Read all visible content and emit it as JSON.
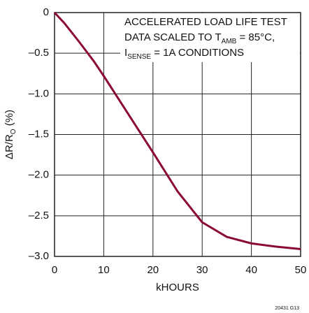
{
  "chart_data": {
    "type": "line",
    "ylabel": [
      {
        "text": "ΔR/R"
      },
      {
        "text": "O",
        "sub": true
      },
      {
        "text": " (%)"
      }
    ],
    "xlabel": "kHOURS",
    "footnote": "20431 G13",
    "annotation": [
      [
        {
          "text": "ACCELERATED LOAD LIFE TEST"
        }
      ],
      [
        {
          "text": "DATA SCALED TO T"
        },
        {
          "text": "AMB",
          "sub": true
        },
        {
          "text": " = 85°C,"
        }
      ],
      [
        {
          "text": "I"
        },
        {
          "text": "SENSE",
          "sub": true
        },
        {
          "text": " = 1A CONDITIONS"
        }
      ]
    ],
    "x": [
      0,
      2,
      5,
      8,
      10,
      15,
      20,
      25,
      30,
      35,
      40,
      45,
      50
    ],
    "series": [
      {
        "color": "#8b0a35",
        "values": [
          0,
          -0.13,
          -0.36,
          -0.6,
          -0.78,
          -1.25,
          -1.72,
          -2.2,
          -2.58,
          -2.76,
          -2.84,
          -2.88,
          -2.91
        ]
      }
    ],
    "xlim": [
      0,
      50
    ],
    "xticks": [
      0,
      10,
      20,
      30,
      40,
      50
    ],
    "ylim": [
      -3,
      0
    ],
    "yticks": [
      0,
      {
        "value": -0.5,
        "label": "–0.5"
      },
      {
        "value": -1,
        "label": "–1.0"
      },
      {
        "value": -1.5,
        "label": "–1.5"
      },
      {
        "value": -2,
        "label": "–2.0"
      },
      {
        "value": -2.5,
        "label": "–2.5"
      },
      {
        "value": -3,
        "label": "–3.0"
      }
    ],
    "grid": true
  }
}
